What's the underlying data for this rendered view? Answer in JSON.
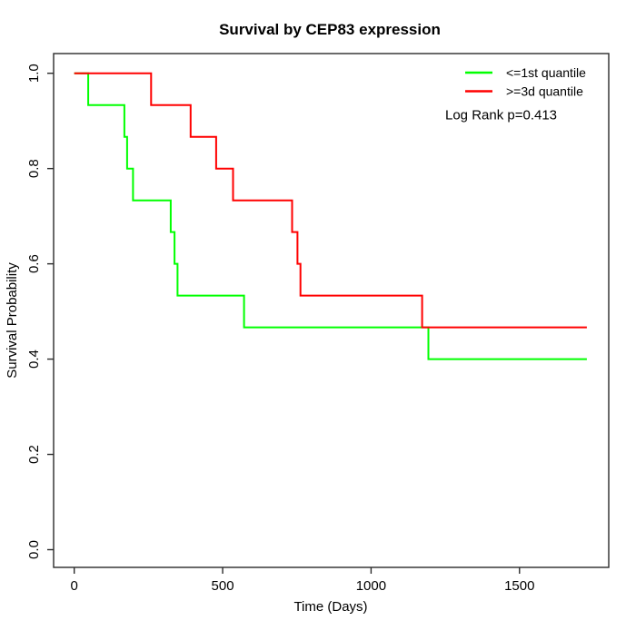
{
  "title": "Survival by CEP83 expression",
  "annotation": "Log Rank p=0.413",
  "colors": {
    "series_low": "#00ff00",
    "series_high": "#ff0000",
    "axis": "#2b2b2b",
    "text": "#000000",
    "background": "#ffffff"
  },
  "chart_data": {
    "type": "line",
    "subtype": "kaplan-meier-step",
    "title": "Survival by CEP83 expression",
    "xlabel": "Time (Days)",
    "ylabel": "Survival Probability",
    "xlim": [
      0,
      1800
    ],
    "ylim": [
      0.0,
      1.0
    ],
    "xticks": [
      0,
      500,
      1000,
      1500
    ],
    "yticks": [
      0.0,
      0.2,
      0.4,
      0.6,
      0.8,
      1.0
    ],
    "grid": false,
    "legend_position": "top-right",
    "annotation": "Log Rank p=0.413",
    "end_time": 1727,
    "series": [
      {
        "name": "<=1st quantile",
        "color": "#00ff00",
        "steps": [
          [
            0,
            1.0
          ],
          [
            47,
            0.9333
          ],
          [
            169,
            0.8667
          ],
          [
            178,
            0.8
          ],
          [
            198,
            0.7333
          ],
          [
            325,
            0.6667
          ],
          [
            338,
            0.6
          ],
          [
            348,
            0.5333
          ],
          [
            572,
            0.4667
          ],
          [
            1193,
            0.4
          ]
        ]
      },
      {
        "name": ">=3d quantile",
        "color": "#ff0000",
        "steps": [
          [
            0,
            1.0
          ],
          [
            259,
            0.9333
          ],
          [
            392,
            0.8667
          ],
          [
            478,
            0.8
          ],
          [
            535,
            0.7333
          ],
          [
            734,
            0.6667
          ],
          [
            752,
            0.6
          ],
          [
            762,
            0.5333
          ],
          [
            1172,
            0.4667
          ]
        ]
      }
    ]
  }
}
